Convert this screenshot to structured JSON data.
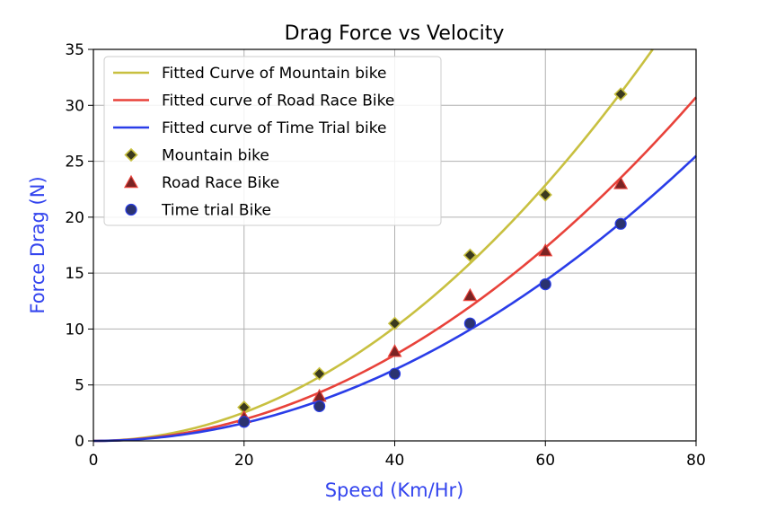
{
  "chart_data": {
    "type": "scatter",
    "title": "Drag Force vs Velocity",
    "xlabel": "Speed (Km/Hr)",
    "ylabel": "Force Drag (N)",
    "xlim": [
      0,
      80
    ],
    "ylim": [
      0,
      35
    ],
    "xticks": [
      0,
      20,
      40,
      60,
      80
    ],
    "yticks": [
      0,
      5,
      10,
      15,
      20,
      25,
      30,
      35
    ],
    "grid": true,
    "legend_position": "top-left",
    "label_color": "#3344ee",
    "curves": [
      {
        "name": "Fitted Curve of Mountain bike",
        "color": "#c8c040",
        "coefficient": 0.00635
      },
      {
        "name": "Fitted curve of Road Race Bike",
        "color": "#e8423a",
        "coefficient": 0.0048
      },
      {
        "name": "Fitted curve of Time Trial bike",
        "color": "#2a3de8",
        "coefficient": 0.00398
      }
    ],
    "series": [
      {
        "name": "Mountain bike",
        "marker": "diamond",
        "color": "#3b3a1e",
        "edge": "#c8c040",
        "x": [
          20,
          30,
          40,
          50,
          60,
          70
        ],
        "y": [
          3.0,
          6.0,
          10.5,
          16.6,
          22.0,
          31.0
        ]
      },
      {
        "name": "Road Race Bike",
        "marker": "triangle",
        "color": "#7a2424",
        "edge": "#e8423a",
        "x": [
          20,
          30,
          40,
          50,
          60,
          70
        ],
        "y": [
          2.1,
          4.0,
          8.0,
          13.0,
          17.0,
          23.0
        ]
      },
      {
        "name": "Time trial Bike",
        "marker": "circle",
        "color": "#2b3370",
        "edge": "#2a3de8",
        "x": [
          20,
          30,
          40,
          50,
          60,
          70
        ],
        "y": [
          1.7,
          3.1,
          6.0,
          10.5,
          14.0,
          19.4
        ]
      }
    ]
  }
}
